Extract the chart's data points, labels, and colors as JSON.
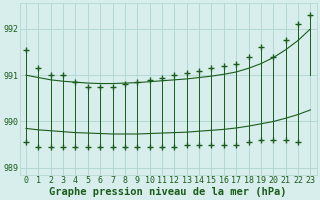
{
  "title": "Graphe pression niveau de la mer (hPa)",
  "bg_color": "#d8eeed",
  "grid_color": "#b0d4d0",
  "line_color": "#1a5c1a",
  "hours": [
    0,
    1,
    2,
    3,
    4,
    5,
    6,
    7,
    8,
    9,
    10,
    11,
    12,
    13,
    14,
    15,
    16,
    17,
    18,
    19,
    20,
    21,
    22,
    23
  ],
  "high_values": [
    991.55,
    991.15,
    991.0,
    991.0,
    990.85,
    990.75,
    990.75,
    990.75,
    990.8,
    990.85,
    990.9,
    990.95,
    991.0,
    991.05,
    991.1,
    991.15,
    991.2,
    991.25,
    991.4,
    991.6,
    991.4,
    991.75,
    992.1,
    992.3
  ],
  "low_values": [
    989.55,
    989.45,
    989.45,
    989.45,
    989.45,
    989.45,
    989.45,
    989.45,
    989.45,
    989.45,
    989.45,
    989.45,
    989.45,
    989.5,
    989.5,
    989.5,
    989.5,
    989.5,
    989.55,
    989.6,
    989.6,
    989.6,
    989.55,
    991.0
  ],
  "trend_high": [
    991.0,
    990.95,
    990.9,
    990.87,
    990.85,
    990.83,
    990.82,
    990.82,
    990.83,
    990.84,
    990.86,
    990.88,
    990.9,
    990.92,
    990.95,
    990.98,
    991.02,
    991.07,
    991.15,
    991.25,
    991.38,
    991.55,
    991.75,
    992.0
  ],
  "trend_low": [
    989.85,
    989.82,
    989.8,
    989.78,
    989.76,
    989.75,
    989.74,
    989.73,
    989.73,
    989.73,
    989.74,
    989.75,
    989.76,
    989.77,
    989.79,
    989.81,
    989.83,
    989.86,
    989.9,
    989.95,
    990.0,
    990.07,
    990.15,
    990.25
  ],
  "ylim": [
    988.85,
    992.55
  ],
  "yticks": [
    989,
    990,
    991,
    992
  ],
  "title_fontsize": 7.5,
  "tick_fontsize": 6.0
}
